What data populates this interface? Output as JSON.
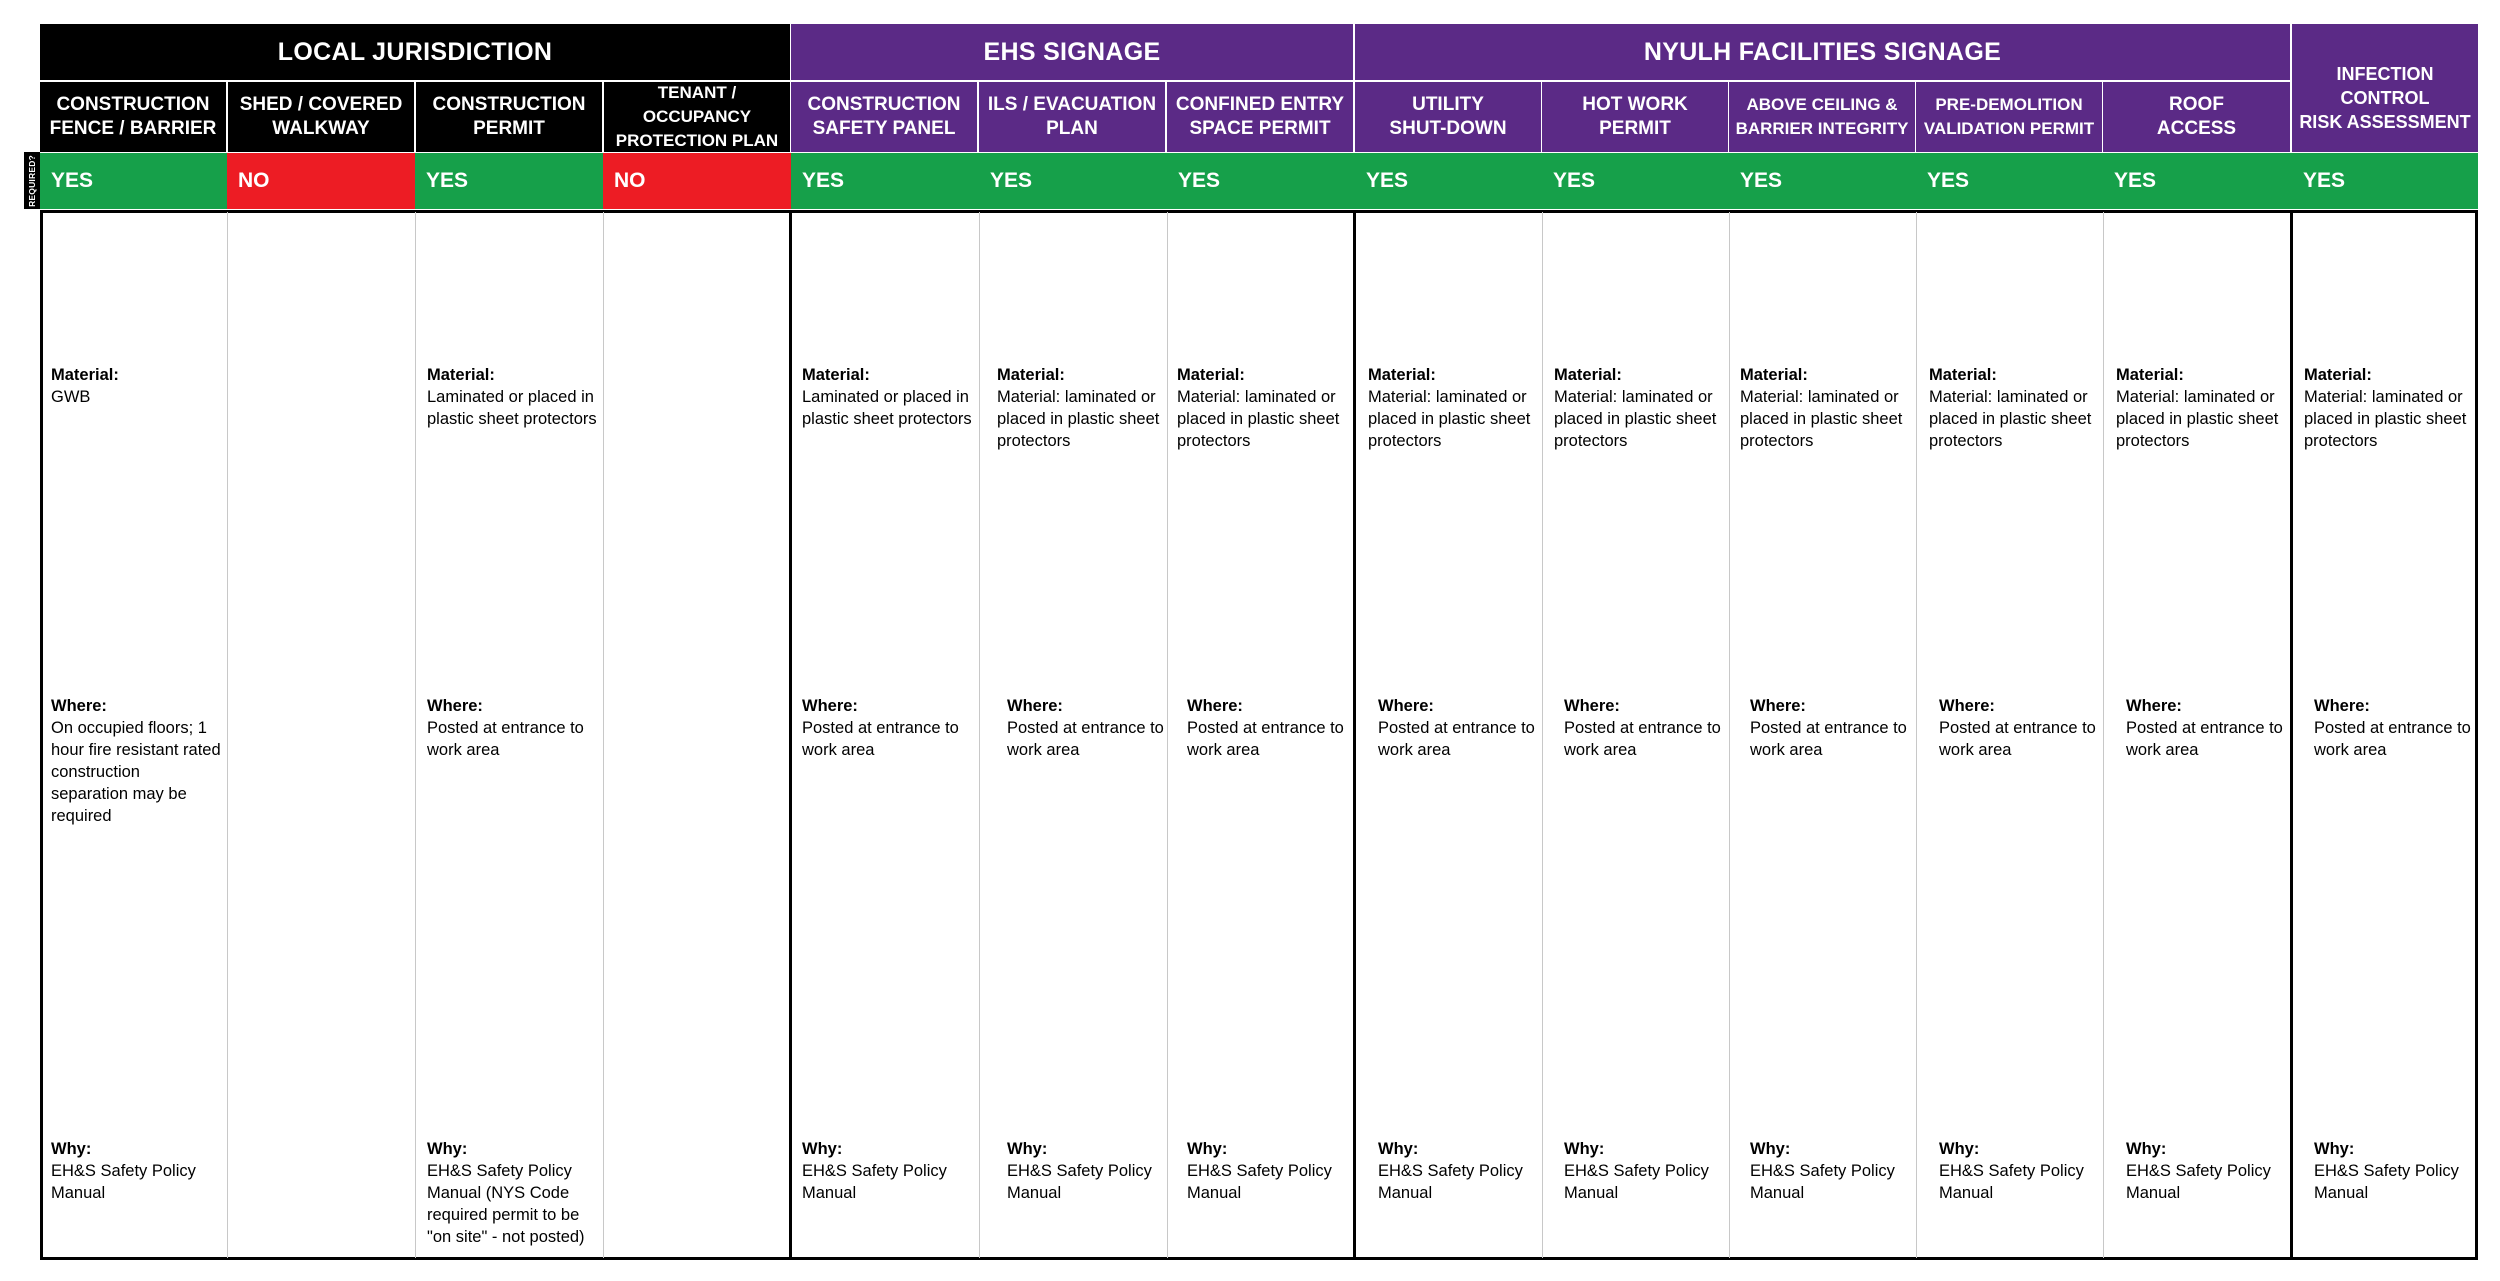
{
  "required_label": "REQUIRED?",
  "groups": [
    {
      "label": "LOCAL JURISDICTION"
    },
    {
      "label": "EHS SIGNAGE"
    },
    {
      "label": "NYULH FACILITIES SIGNAGE"
    }
  ],
  "columns": [
    {
      "title_l1": "CONSTRUCTION",
      "title_l2": "FENCE / BARRIER",
      "required": "YES",
      "material_label": "Material:",
      "material": "GWB",
      "where_label": "Where:",
      "where": "On occupied floors; 1 hour fire resistant rated construction separation may be required",
      "why_label": "Why:",
      "why": "EH&S Safety Policy Manual"
    },
    {
      "title_l1": "SHED / COVERED",
      "title_l2": "WALKWAY",
      "required": "NO"
    },
    {
      "title_l1": "CONSTRUCTION",
      "title_l2": "PERMIT",
      "required": "YES",
      "material_label": "Material:",
      "material": "Laminated or placed in plastic sheet protectors",
      "where_label": "Where:",
      "where": "Posted at entrance to work area",
      "why_label": "Why:",
      "why": "EH&S Safety Policy Manual (NYS Code required permit to be \"on site\" - not posted)"
    },
    {
      "title_l1": "TENANT / OCCUPANCY",
      "title_l2": "PROTECTION PLAN",
      "required": "NO"
    },
    {
      "title_l1": "CONSTRUCTION",
      "title_l2": "SAFETY PANEL",
      "required": "YES",
      "material_label": "Material:",
      "material": "Laminated or placed in plastic sheet protectors",
      "where_label": "Where:",
      "where": "Posted at entrance to work area",
      "why_label": "Why:",
      "why": "EH&S Safety Policy Manual"
    },
    {
      "title_l1": "ILS / EVACUATION",
      "title_l2": "PLAN",
      "required": "YES",
      "material_label": "Material:",
      "material": "Material: laminated or placed in plastic sheet protectors",
      "where_label": "Where:",
      "where": "Posted at entrance to work area",
      "why_label": "Why:",
      "why": "EH&S Safety Policy Manual"
    },
    {
      "title_l1": "CONFINED ENTRY",
      "title_l2": "SPACE PERMIT",
      "required": "YES",
      "material_label": "Material:",
      "material": "Material: laminated or placed in plastic sheet protectors",
      "where_label": "Where:",
      "where": "Posted at entrance to work area",
      "why_label": "Why:",
      "why": "EH&S Safety Policy Manual"
    },
    {
      "title_l1": "UTILITY",
      "title_l2": "SHUT-DOWN",
      "required": "YES",
      "material_label": "Material:",
      "material": "Material: laminated or placed in plastic sheet protectors",
      "where_label": "Where:",
      "where": "Posted at entrance to work area",
      "why_label": "Why:",
      "why": "EH&S Safety Policy Manual"
    },
    {
      "title_l1": "HOT WORK",
      "title_l2": "PERMIT",
      "required": "YES",
      "material_label": "Material:",
      "material": "Material: laminated or placed in plastic sheet protectors",
      "where_label": "Where:",
      "where": "Posted at entrance to work area",
      "why_label": "Why:",
      "why": "EH&S Safety Policy Manual"
    },
    {
      "title_l1": "ABOVE CEILING &",
      "title_l2": "BARRIER INTEGRITY",
      "required": "YES",
      "material_label": "Material:",
      "material": "Material: laminated or placed in plastic sheet protectors",
      "where_label": "Where:",
      "where": "Posted at entrance to work area",
      "why_label": "Why:",
      "why": "EH&S Safety Policy Manual"
    },
    {
      "title_l1": "PRE-DEMOLITION",
      "title_l2": "VALIDATION PERMIT",
      "required": "YES",
      "material_label": "Material:",
      "material": "Material: laminated or placed in plastic sheet protectors",
      "where_label": "Where:",
      "where": "Posted at entrance to work area",
      "why_label": "Why:",
      "why": "EH&S Safety Policy Manual"
    },
    {
      "title_l1": "ROOF",
      "title_l2": "ACCESS",
      "required": "YES",
      "material_label": "Material:",
      "material": "Material: laminated or placed in plastic sheet protectors",
      "where_label": "Where:",
      "where": "Posted at entrance to work area",
      "why_label": "Why:",
      "why": "EH&S Safety Policy Manual"
    },
    {
      "title_l1": "INFECTION CONTROL",
      "title_l2": "RISK ASSESSMENT",
      "required": "YES",
      "material_label": "Material:",
      "material": "Material: laminated or placed in plastic sheet protectors",
      "where_label": "Where:",
      "where": "Posted at entrance to work area",
      "why_label": "Why:",
      "why": "EH&S Safety Policy Manual"
    }
  ],
  "colors": {
    "black": "#000000",
    "purple": "#5b2a86",
    "green": "#16a04a",
    "red": "#ed1c24"
  }
}
